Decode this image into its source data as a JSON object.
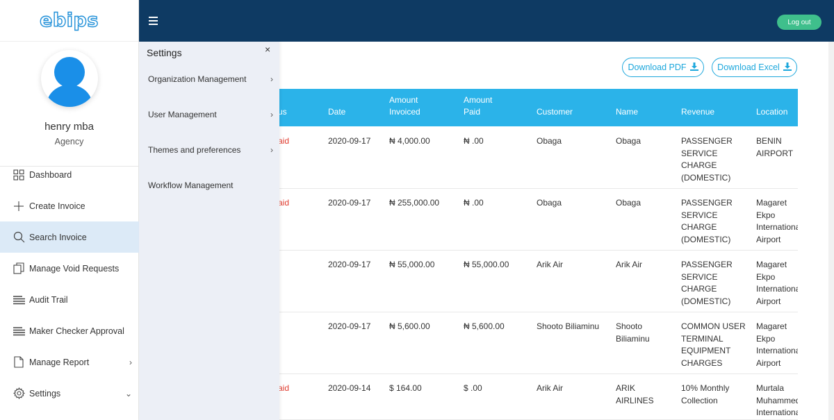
{
  "brand": {
    "logo": "ebips"
  },
  "user": {
    "name": "henry mba",
    "role": "Agency"
  },
  "sidebar": {
    "items": [
      {
        "label": "Dashboard",
        "icon": "dashboard-grid-icon"
      },
      {
        "label": "Create Invoice",
        "icon": "plus-icon"
      },
      {
        "label": "Search Invoice",
        "icon": "search-icon",
        "active": true
      },
      {
        "label": "Manage Void Requests",
        "icon": "documents-icon"
      },
      {
        "label": "Audit Trail",
        "icon": "lines-icon"
      },
      {
        "label": "Maker Checker Approval",
        "icon": "lines-icon"
      },
      {
        "label": "Manage Report",
        "icon": "document-icon",
        "chevron": "›"
      },
      {
        "label": "Settings",
        "icon": "gear-icon",
        "chevron": "⌄"
      }
    ]
  },
  "topbar": {
    "logout_label": "Log out",
    "colors": {
      "bar": "#0e3a63",
      "logout": "#3fbf8c"
    }
  },
  "toolbar": {
    "download_pdf": "Download PDF",
    "download_excel": "Download Excel"
  },
  "settings_panel": {
    "title": "Settings",
    "close": "×",
    "items": [
      {
        "label": "Organization Management",
        "chevron": "›"
      },
      {
        "label": "User Management",
        "chevron": "›"
      },
      {
        "label": "Themes and preferences",
        "chevron": "›"
      },
      {
        "label": "Workflow Management",
        "chevron": ""
      }
    ]
  },
  "table": {
    "headers": [
      "us",
      "Date",
      "Amount Invoiced",
      "Amount Paid",
      "Customer",
      "Name",
      "Revenue",
      "Location"
    ],
    "header_color": "#2bb3e9",
    "rows": [
      {
        "status": "aid",
        "date": "2020-09-17",
        "invoiced": "₦ 4,000.00",
        "paid": "₦ .00",
        "customer": "Obaga",
        "name": "Obaga",
        "revenue": "PASSENGER SERVICE CHARGE (DOMESTIC)",
        "location": "BENIN AIRPORT"
      },
      {
        "status": "aid",
        "date": "2020-09-17",
        "invoiced": "₦ 255,000.00",
        "paid": "₦ .00",
        "customer": "Obaga",
        "name": "Obaga",
        "revenue": "PASSENGER SERVICE CHARGE (DOMESTIC)",
        "location": "Magaret Ekpo International Airport"
      },
      {
        "status": "",
        "date": "2020-09-17",
        "invoiced": "₦ 55,000.00",
        "paid": "₦ 55,000.00",
        "customer": "Arik Air",
        "name": "Arik Air",
        "revenue": "PASSENGER SERVICE CHARGE (DOMESTIC)",
        "location": "Magaret Ekpo International Airport"
      },
      {
        "status": "",
        "date": "2020-09-17",
        "invoiced": "₦ 5,600.00",
        "paid": "₦ 5,600.00",
        "customer": "Shooto Biliaminu",
        "name": "Shooto Biliaminu",
        "revenue": "COMMON USER TERMINAL EQUIPMENT CHARGES",
        "location": "Magaret Ekpo International Airport"
      },
      {
        "status": "aid",
        "date": "2020-09-14",
        "invoiced": "$ 164.00",
        "paid": "$ .00",
        "customer": "Arik Air",
        "name": "ARIK AIRLINES",
        "revenue": "10% Monthly Collection",
        "location": "Murtala Muhammed International"
      }
    ]
  }
}
